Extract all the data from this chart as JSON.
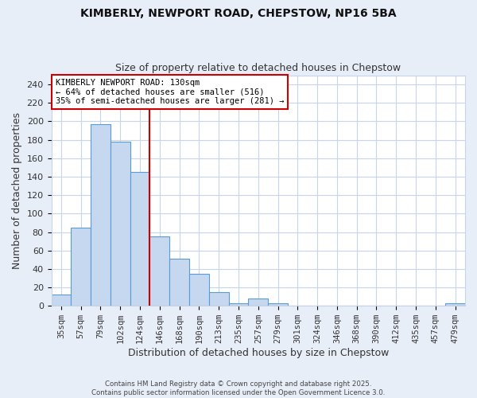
{
  "title_line1": "KIMBERLY, NEWPORT ROAD, CHEPSTOW, NP16 5BA",
  "title_line2": "Size of property relative to detached houses in Chepstow",
  "xlabel": "Distribution of detached houses by size in Chepstow",
  "ylabel": "Number of detached properties",
  "categories": [
    "35sqm",
    "57sqm",
    "79sqm",
    "102sqm",
    "124sqm",
    "146sqm",
    "168sqm",
    "190sqm",
    "213sqm",
    "235sqm",
    "257sqm",
    "279sqm",
    "301sqm",
    "324sqm",
    "346sqm",
    "368sqm",
    "390sqm",
    "412sqm",
    "435sqm",
    "457sqm",
    "479sqm"
  ],
  "values": [
    12,
    85,
    197,
    178,
    145,
    75,
    51,
    35,
    15,
    3,
    8,
    3,
    0,
    0,
    0,
    0,
    0,
    0,
    0,
    0,
    3
  ],
  "bar_color": "#c5d8f0",
  "bar_edge_color": "#5b9bd5",
  "annotation_box_text": "KIMBERLY NEWPORT ROAD: 130sqm\n← 64% of detached houses are smaller (516)\n35% of semi-detached houses are larger (281) →",
  "red_line_color": "#cc0000",
  "annotation_box_color": "#ffffff",
  "annotation_box_edge_color": "#cc0000",
  "footer_text": "Contains HM Land Registry data © Crown copyright and database right 2025.\nContains public sector information licensed under the Open Government Licence 3.0.",
  "bg_color": "#e8eef8",
  "plot_bg_color": "#ffffff",
  "grid_color": "#c8d4e8",
  "ylim": [
    0,
    250
  ],
  "yticks": [
    0,
    20,
    40,
    60,
    80,
    100,
    120,
    140,
    160,
    180,
    200,
    220,
    240
  ],
  "red_line_x": 4.5
}
